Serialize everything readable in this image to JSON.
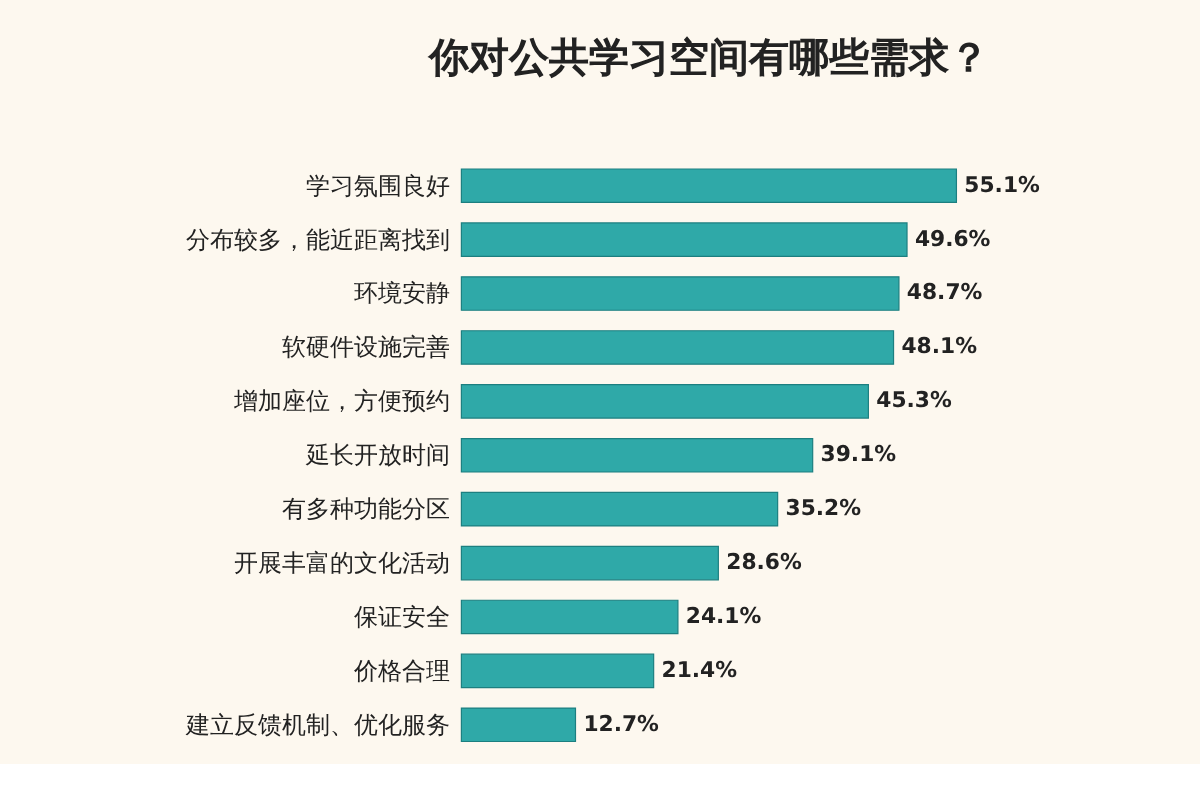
{
  "chart_data": {
    "type": "bar",
    "orientation": "horizontal",
    "title": "你对公共学习空间有哪些需求？",
    "categories": [
      "学习氛围良好",
      "分布较多，能近距离找到",
      "环境安静",
      "软硬件设施完善",
      "增加座位，方便预约",
      "延长开放时间",
      "有多种功能分区",
      "开展丰富的文化活动",
      "保证安全",
      "价格合理",
      "建立反馈机制、优化服务"
    ],
    "values": [
      55.1,
      49.6,
      48.7,
      48.1,
      45.3,
      39.1,
      35.2,
      28.6,
      24.1,
      21.4,
      12.7
    ],
    "value_labels": [
      "55.1%",
      "49.6%",
      "48.7%",
      "48.1%",
      "45.3%",
      "39.1%",
      "35.2%",
      "28.6%",
      "24.1%",
      "21.4%",
      "12.7%"
    ],
    "color": "#2fa9a8",
    "grid": false
  }
}
